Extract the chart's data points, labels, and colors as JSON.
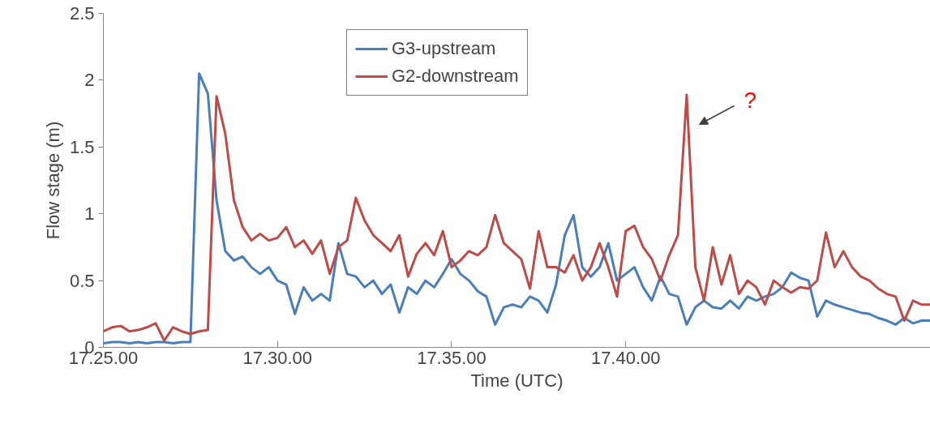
{
  "chart_data": {
    "type": "line",
    "xlabel": "Time (UTC)",
    "ylabel": "Flow stage (m)",
    "categories": [
      "17.25.00",
      null,
      null,
      null,
      null,
      null,
      null,
      null,
      null,
      null,
      null,
      null,
      null,
      null,
      null,
      null,
      null,
      null,
      null,
      null,
      "17.30.00",
      null,
      null,
      null,
      null,
      null,
      null,
      null,
      null,
      null,
      null,
      null,
      null,
      null,
      null,
      null,
      null,
      null,
      null,
      null,
      "17.35.00",
      null,
      null,
      null,
      null,
      null,
      null,
      null,
      null,
      null,
      null,
      null,
      null,
      null,
      null,
      null,
      null,
      null,
      null,
      null,
      "17.40.00",
      null,
      null,
      null,
      null,
      null,
      null,
      null,
      null,
      null,
      null,
      null,
      null,
      null,
      null,
      null,
      null,
      null,
      null,
      null,
      null,
      null,
      null,
      null,
      null,
      null,
      null,
      null,
      null,
      null,
      null,
      null,
      null,
      null,
      null,
      null
    ],
    "ylim": [
      0,
      2.5
    ],
    "yticks": [
      0,
      0.5,
      1,
      1.5,
      2,
      2.5
    ],
    "grid": false,
    "legend": "top",
    "line_style": "solid",
    "marker": "none",
    "annotations": [
      "?"
    ],
    "series": [
      {
        "name": "G3-upstream",
        "color": "#4a7ebb",
        "values": [
          0.03,
          0.04,
          0.04,
          0.03,
          0.04,
          0.03,
          0.04,
          0.04,
          0.03,
          0.04,
          0.04,
          2.05,
          1.9,
          1.1,
          0.72,
          0.65,
          0.68,
          0.6,
          0.55,
          0.6,
          0.5,
          0.47,
          0.25,
          0.45,
          0.35,
          0.4,
          0.35,
          0.78,
          0.55,
          0.53,
          0.45,
          0.5,
          0.4,
          0.47,
          0.26,
          0.45,
          0.4,
          0.5,
          0.45,
          0.55,
          0.66,
          0.55,
          0.5,
          0.42,
          0.38,
          0.17,
          0.3,
          0.32,
          0.3,
          0.38,
          0.35,
          0.26,
          0.47,
          0.84,
          0.99,
          0.6,
          0.53,
          0.6,
          0.78,
          0.5,
          0.55,
          0.6,
          0.45,
          0.35,
          0.53,
          0.4,
          0.38,
          0.17,
          0.3,
          0.35,
          0.3,
          0.29,
          0.35,
          0.29,
          0.38,
          0.35,
          0.38,
          0.4,
          0.45,
          0.56,
          0.52,
          0.5,
          0.23,
          0.35,
          0.32,
          0.3,
          0.28,
          0.26,
          0.25,
          0.22,
          0.2,
          0.17,
          0.22,
          0.18,
          0.2,
          0.2
        ]
      },
      {
        "name": "G2-downstream",
        "color": "#be4b48",
        "values": [
          0.12,
          0.15,
          0.16,
          0.12,
          0.13,
          0.15,
          0.18,
          0.05,
          0.15,
          0.12,
          0.1,
          0.12,
          0.13,
          1.88,
          1.6,
          1.1,
          0.9,
          0.8,
          0.85,
          0.8,
          0.82,
          0.9,
          0.75,
          0.8,
          0.7,
          0.8,
          0.55,
          0.75,
          0.8,
          1.12,
          0.95,
          0.84,
          0.78,
          0.72,
          0.84,
          0.53,
          0.7,
          0.78,
          0.69,
          0.87,
          0.6,
          0.65,
          0.72,
          0.69,
          0.75,
          0.99,
          0.78,
          0.72,
          0.66,
          0.44,
          0.87,
          0.6,
          0.6,
          0.56,
          0.69,
          0.5,
          0.6,
          0.78,
          0.6,
          0.38,
          0.87,
          0.91,
          0.75,
          0.66,
          0.5,
          0.69,
          0.84,
          1.89,
          0.6,
          0.35,
          0.75,
          0.47,
          0.69,
          0.4,
          0.5,
          0.45,
          0.32,
          0.5,
          0.45,
          0.41,
          0.45,
          0.44,
          0.5,
          0.86,
          0.6,
          0.72,
          0.6,
          0.53,
          0.5,
          0.44,
          0.4,
          0.38,
          0.2,
          0.35,
          0.32,
          0.32
        ]
      }
    ]
  }
}
